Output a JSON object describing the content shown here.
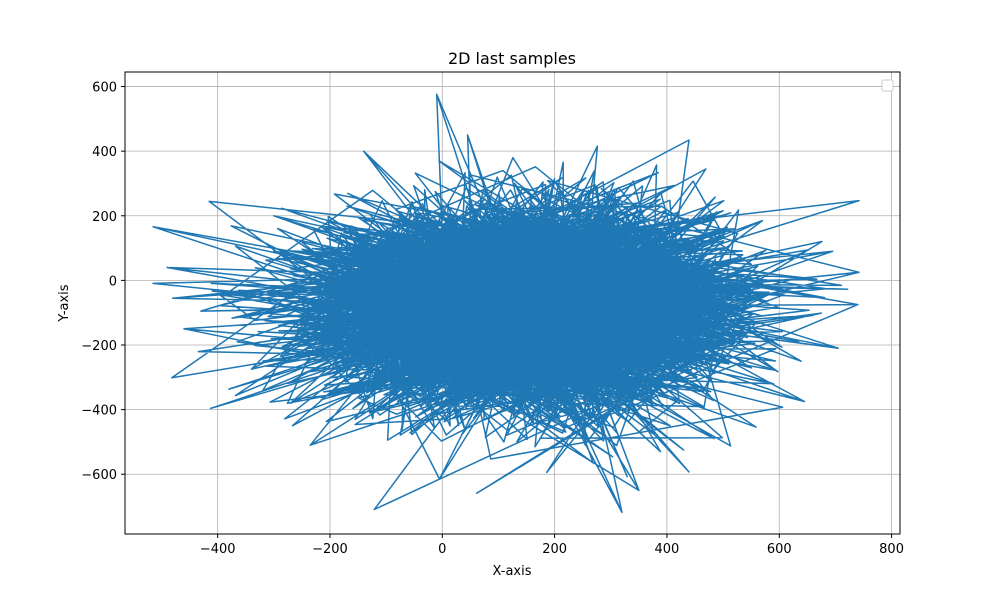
{
  "chart_data": {
    "type": "line",
    "title": "2D last samples",
    "xlabel": "X-axis",
    "ylabel": "Y-axis",
    "xlim": [
      -565,
      815
    ],
    "ylim": [
      -785,
      645
    ],
    "xticks": [
      -400,
      -200,
      0,
      200,
      400,
      600,
      800
    ],
    "yticks": [
      -600,
      -400,
      -200,
      0,
      200,
      400,
      600
    ],
    "xtick_labels": [
      "−400",
      "−200",
      "0",
      "200",
      "400",
      "600",
      "800"
    ],
    "ytick_labels": [
      "−600",
      "−400",
      "−200",
      "0",
      "200",
      "400",
      "600"
    ],
    "grid": true,
    "legend": "top-right (empty)",
    "series": [
      {
        "color": "#1f77b4",
        "center": [
          150,
          -80
        ],
        "spread_x": 175,
        "spread_y": 150,
        "x_range": [
          -515,
          742
        ],
        "y_range": [
          -718,
          576
        ],
        "outline_points": [
          [
            -515,
            166
          ],
          [
            -490,
            40
          ],
          [
            -480,
            -55
          ],
          [
            -460,
            -150
          ],
          [
            -430,
            -95
          ],
          [
            -300,
            200
          ],
          [
            -340,
            -275
          ],
          [
            -270,
            -380
          ],
          [
            -235,
            -510
          ],
          [
            -140,
            400
          ],
          [
            -10,
            576
          ],
          [
            45,
            450
          ],
          [
            -5,
            -615
          ],
          [
            200,
            315
          ],
          [
            320,
            -718
          ],
          [
            350,
            -650
          ],
          [
            390,
            230
          ],
          [
            500,
            215
          ],
          [
            570,
            185
          ],
          [
            695,
            90
          ],
          [
            742,
            25
          ],
          [
            740,
            -75
          ],
          [
            705,
            -210
          ],
          [
            645,
            -375
          ],
          [
            590,
            -320
          ]
        ]
      }
    ]
  }
}
